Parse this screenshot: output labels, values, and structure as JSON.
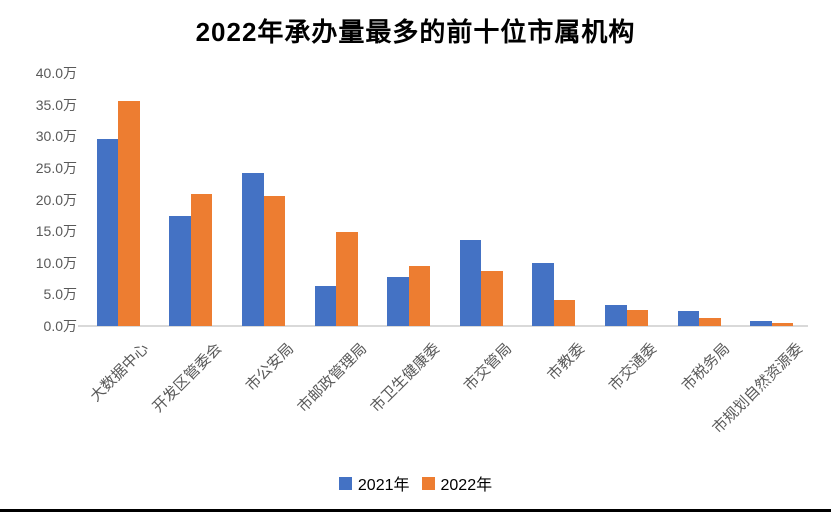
{
  "title": "2022年承办量最多的前十位市属机构",
  "colors": {
    "series_2021": "#4472C4",
    "series_2022": "#ED7D31",
    "axis_line": "#D9D9D9",
    "tick_text": "#595959",
    "title_text": "#000000",
    "bottom_rule": "#000000",
    "background": "#FFFFFF"
  },
  "chart_data": {
    "type": "bar",
    "title": "2022年承办量最多的前十位市属机构",
    "unit": "万",
    "categories": [
      "大数据中心",
      "开发区管委会",
      "市公安局",
      "市邮政管理局",
      "市卫生健康委",
      "市交管局",
      "市教委",
      "市交通委",
      "市税务局",
      "市规划自然资源委"
    ],
    "series": [
      {
        "name": "2021年",
        "color": "#4472C4",
        "values": [
          29.5,
          17.4,
          24.2,
          6.3,
          7.8,
          13.6,
          9.9,
          3.3,
          2.3,
          0.8
        ]
      },
      {
        "name": "2022年",
        "color": "#ED7D31",
        "values": [
          35.5,
          20.8,
          20.5,
          14.8,
          9.5,
          8.7,
          4.1,
          2.6,
          1.3,
          0.5
        ]
      }
    ],
    "xlabel": "",
    "ylabel": "",
    "ylim": [
      0,
      40
    ],
    "ytick_step": 5,
    "ytick_labels": [
      "0.0万",
      "5.0万",
      "10.0万",
      "15.0万",
      "20.0万",
      "25.0万",
      "30.0万",
      "35.0万",
      "40.0万"
    ],
    "grid": false,
    "legend_position": "bottom",
    "xlabel_rotation_deg": 45
  },
  "legend": {
    "items": [
      {
        "label": "2021年"
      },
      {
        "label": "2022年"
      }
    ]
  }
}
